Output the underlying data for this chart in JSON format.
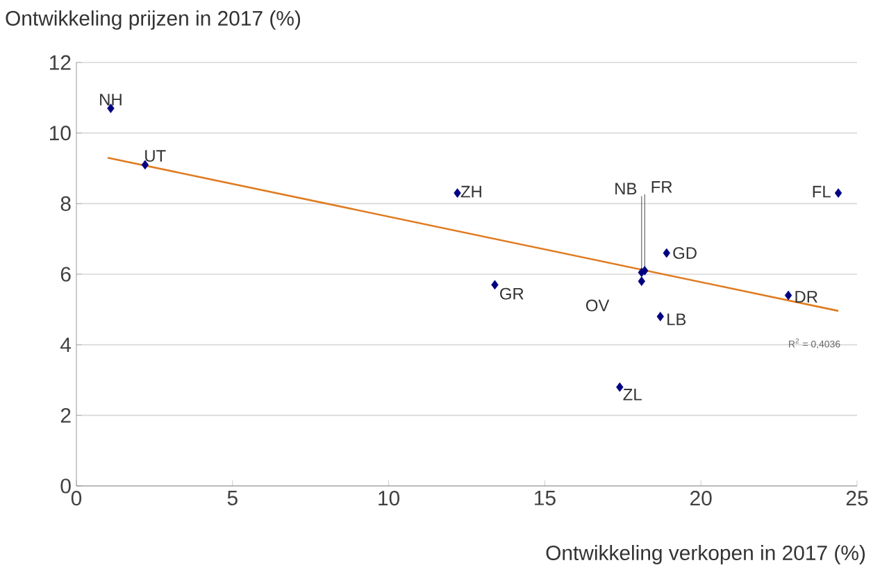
{
  "chart_data": {
    "type": "scatter",
    "xlabel": "Ontwikkeling verkopen in 2017 (%)",
    "ylabel": "Ontwikkeling prijzen in 2017 (%)",
    "xlim": [
      0,
      25
    ],
    "ylim": [
      0,
      12
    ],
    "xticks": [
      0,
      5,
      10,
      15,
      20,
      25
    ],
    "yticks": [
      0,
      2,
      4,
      6,
      8,
      10,
      12
    ],
    "grid": "y",
    "marker": "diamond",
    "series": [
      {
        "color": "#000080",
        "x": [
          1.1,
          2.2,
          12.2,
          13.4,
          18.1,
          18.2,
          18.1,
          18.9,
          18.7,
          17.4,
          22.8,
          24.4
        ],
        "values": [
          10.7,
          9.1,
          8.3,
          5.7,
          6.05,
          6.1,
          5.8,
          6.6,
          4.8,
          2.8,
          5.4,
          8.3
        ]
      },
      {
        "type": "line",
        "color": "#e07b20",
        "marker": "none",
        "line_style": "solid",
        "x": [
          1,
          24.4
        ],
        "values": [
          9.3,
          4.96
        ]
      }
    ],
    "annotations": [
      {
        "text": "NH",
        "x": 1.1,
        "y": 10.7
      },
      {
        "text": "UT",
        "x": 2.2,
        "y": 9.1
      },
      {
        "text": "ZH",
        "x": 12.2,
        "y": 8.3
      },
      {
        "text": "GR",
        "x": 13.4,
        "y": 5.7
      },
      {
        "text": "NB",
        "x": 18.1,
        "y": 6.05
      },
      {
        "text": "FR",
        "x": 18.2,
        "y": 6.1
      },
      {
        "text": "OV",
        "x": 18.1,
        "y": 5.8
      },
      {
        "text": "GD",
        "x": 18.9,
        "y": 6.6
      },
      {
        "text": "LB",
        "x": 18.7,
        "y": 4.8
      },
      {
        "text": "ZL",
        "x": 17.4,
        "y": 2.8
      },
      {
        "text": "DR",
        "x": 22.8,
        "y": 5.4
      },
      {
        "text": "FL",
        "x": 24.4,
        "y": 8.3
      },
      "R$^{2}$ = 0,4036"
    ]
  }
}
